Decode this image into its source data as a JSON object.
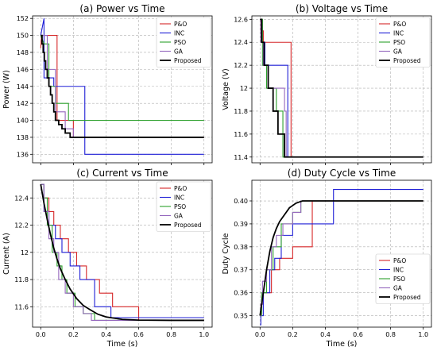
{
  "chart_data": [
    {
      "type": "line",
      "title": "(a) Power vs Time",
      "xlabel": "",
      "ylabel": "Power (W)",
      "xlim": [
        -0.05,
        1.05
      ],
      "ylim": [
        135,
        152.3
      ],
      "xticks": [],
      "yticks": [
        136,
        138,
        140,
        142,
        144,
        146,
        148,
        150,
        152
      ],
      "grid": true,
      "legend_position": "top-right",
      "series": [
        {
          "name": "P&O",
          "color": "#d62728",
          "x": [
            0,
            0.005,
            0.1,
            0.1,
            0.2,
            0.2,
            1
          ],
          "y": [
            148.5,
            150,
            150,
            140,
            140,
            138,
            138
          ]
        },
        {
          "name": "INC",
          "color": "#1f1fd6",
          "x": [
            0,
            0.02,
            0.02,
            0.08,
            0.08,
            0.27,
            0.27,
            1
          ],
          "y": [
            150,
            152,
            145,
            145,
            144,
            144,
            136,
            136
          ]
        },
        {
          "name": "PSO",
          "color": "#2ca02c",
          "x": [
            0,
            0.02,
            0.05,
            0.05,
            0.09,
            0.09,
            0.17,
            0.17,
            1
          ],
          "y": [
            150,
            149,
            149,
            144,
            144,
            142,
            142,
            140,
            140
          ]
        },
        {
          "name": "GA",
          "color": "#9467bd",
          "x": [
            0,
            0.01,
            0.04,
            0.04,
            0.09,
            0.09,
            0.15,
            0.15,
            0.2,
            0.2,
            1
          ],
          "y": [
            150,
            150,
            150,
            146,
            146,
            141,
            141,
            139,
            139,
            138,
            138
          ]
        },
        {
          "name": "Proposed",
          "color": "#000000",
          "x": [
            0,
            0.008,
            0.008,
            0.015,
            0.015,
            0.022,
            0.022,
            0.03,
            0.03,
            0.04,
            0.04,
            0.05,
            0.05,
            0.06,
            0.06,
            0.07,
            0.07,
            0.08,
            0.08,
            0.09,
            0.09,
            0.11,
            0.11,
            0.13,
            0.13,
            0.15,
            0.15,
            0.18,
            0.18,
            1
          ],
          "y": [
            150,
            150,
            149,
            149,
            148,
            148,
            147,
            147,
            146,
            146,
            145,
            145,
            144,
            144,
            143,
            143,
            142,
            142,
            141,
            141,
            140,
            140,
            139.5,
            139.5,
            139,
            139,
            138.5,
            138.5,
            138,
            138
          ]
        }
      ]
    },
    {
      "type": "line",
      "title": "(b) Voltage vs Time",
      "xlabel": "",
      "ylabel": "Voltage (V)",
      "xlim": [
        -0.05,
        1.05
      ],
      "ylim": [
        11.35,
        12.63
      ],
      "xticks": [],
      "yticks": [
        11.4,
        11.6,
        11.8,
        12.0,
        12.2,
        12.4,
        12.6
      ],
      "grid": true,
      "legend_position": "top-right",
      "series": [
        {
          "name": "P&O",
          "color": "#d62728",
          "x": [
            0,
            0.005,
            0.005,
            0.02,
            0.02,
            0.19,
            0.19,
            1
          ],
          "y": [
            12.6,
            12.6,
            12.5,
            12.5,
            12.4,
            12.4,
            11.4,
            11.4
          ]
        },
        {
          "name": "INC",
          "color": "#1f1fd6",
          "x": [
            0,
            0.01,
            0.01,
            0.03,
            0.03,
            0.17,
            0.17,
            1
          ],
          "y": [
            12.6,
            12.6,
            12.4,
            12.4,
            12.2,
            12.2,
            11.4,
            11.4
          ]
        },
        {
          "name": "PSO",
          "color": "#2ca02c",
          "x": [
            0,
            0.015,
            0.015,
            0.04,
            0.04,
            0.1,
            0.1,
            0.14,
            0.14,
            1
          ],
          "y": [
            12.6,
            12.6,
            12.2,
            12.2,
            12.0,
            12.0,
            11.8,
            11.8,
            11.4,
            11.4
          ]
        },
        {
          "name": "GA",
          "color": "#9467bd",
          "x": [
            0,
            0.005,
            0.005,
            0.02,
            0.02,
            0.05,
            0.05,
            0.15,
            0.15,
            0.16,
            0.16,
            1
          ],
          "y": [
            12.6,
            12.6,
            12.4,
            12.4,
            12.2,
            12.2,
            12.0,
            12.0,
            11.8,
            11.8,
            11.4,
            11.4
          ]
        },
        {
          "name": "Proposed",
          "color": "#000000",
          "x": [
            0,
            0.01,
            0.01,
            0.025,
            0.025,
            0.05,
            0.05,
            0.08,
            0.08,
            0.11,
            0.11,
            0.15,
            0.15,
            1
          ],
          "y": [
            12.6,
            12.6,
            12.4,
            12.4,
            12.2,
            12.2,
            12.0,
            12.0,
            11.8,
            11.8,
            11.6,
            11.6,
            11.4,
            11.4
          ]
        }
      ]
    },
    {
      "type": "line",
      "title": "(c) Current vs Time",
      "xlabel": "Time (s)",
      "ylabel": "Current (A)",
      "xlim": [
        -0.05,
        1.05
      ],
      "ylim": [
        11.45,
        12.53
      ],
      "xticks": [
        "0.0",
        "0.2",
        "0.4",
        "0.6",
        "0.8",
        "1.0"
      ],
      "yticks": [
        11.6,
        11.8,
        12.0,
        12.2,
        12.4
      ],
      "grid": true,
      "legend_position": "top-right",
      "series": [
        {
          "name": "P&O",
          "color": "#d62728",
          "x": [
            0,
            0.02,
            0.02,
            0.05,
            0.05,
            0.08,
            0.08,
            0.12,
            0.12,
            0.17,
            0.17,
            0.22,
            0.22,
            0.28,
            0.28,
            0.36,
            0.36,
            0.44,
            0.44,
            0.6,
            0.6,
            1
          ],
          "y": [
            12.5,
            12.5,
            12.4,
            12.4,
            12.3,
            12.3,
            12.2,
            12.2,
            12.1,
            12.1,
            12.0,
            12.0,
            11.9,
            11.9,
            11.8,
            11.8,
            11.7,
            11.7,
            11.6,
            11.6,
            11.5,
            11.5
          ]
        },
        {
          "name": "INC",
          "color": "#1f1fd6",
          "x": [
            0,
            0.02,
            0.02,
            0.05,
            0.05,
            0.09,
            0.09,
            0.13,
            0.13,
            0.18,
            0.18,
            0.24,
            0.24,
            0.33,
            0.33,
            0.43,
            0.43,
            1
          ],
          "y": [
            12.5,
            12.5,
            12.3,
            12.3,
            12.2,
            12.2,
            12.1,
            12.1,
            12.0,
            12.0,
            11.9,
            11.9,
            11.8,
            11.8,
            11.6,
            11.6,
            11.52,
            11.52
          ]
        },
        {
          "name": "PSO",
          "color": "#2ca02c",
          "x": [
            0,
            0.02,
            0.02,
            0.04,
            0.04,
            0.07,
            0.07,
            0.1,
            0.1,
            0.13,
            0.13,
            0.16,
            0.16,
            0.21,
            0.21,
            0.26,
            0.26,
            0.33,
            0.33,
            1
          ],
          "y": [
            12.5,
            12.5,
            12.4,
            12.4,
            12.2,
            12.2,
            12.0,
            12.0,
            11.9,
            11.9,
            11.8,
            11.8,
            11.7,
            11.7,
            11.6,
            11.6,
            11.55,
            11.55,
            11.5,
            11.5
          ]
        },
        {
          "name": "GA",
          "color": "#9467bd",
          "x": [
            0,
            0.02,
            0.02,
            0.05,
            0.05,
            0.08,
            0.08,
            0.11,
            0.11,
            0.15,
            0.15,
            0.2,
            0.2,
            0.26,
            0.26,
            0.31,
            0.31,
            1
          ],
          "y": [
            12.5,
            12.5,
            12.3,
            12.3,
            12.1,
            12.1,
            12.0,
            12.0,
            11.8,
            11.8,
            11.7,
            11.7,
            11.6,
            11.6,
            11.55,
            11.55,
            11.5,
            11.5
          ]
        },
        {
          "name": "Proposed",
          "color": "#000000",
          "x": [
            0,
            0.02,
            0.04,
            0.06,
            0.08,
            0.1,
            0.12,
            0.15,
            0.18,
            0.22,
            0.26,
            0.3,
            0.35,
            0.4,
            0.5,
            0.6,
            0.8,
            1.0
          ],
          "y": [
            12.5,
            12.36,
            12.24,
            12.13,
            12.03,
            11.95,
            11.88,
            11.8,
            11.73,
            11.66,
            11.61,
            11.58,
            11.545,
            11.525,
            11.507,
            11.502,
            11.5,
            11.5
          ]
        }
      ]
    },
    {
      "type": "line",
      "title": "(d) Duty Cycle vs Time",
      "xlabel": "Time (s)",
      "ylabel": "Duty Cycle",
      "xlim": [
        -0.05,
        1.05
      ],
      "ylim": [
        0.345,
        0.409
      ],
      "xticks": [
        "0.0",
        "0.2",
        "0.4",
        "0.6",
        "0.8",
        "1.0"
      ],
      "yticks": [
        "0.35",
        "0.36",
        "0.37",
        "0.38",
        "0.39",
        "0.40"
      ],
      "grid": true,
      "legend_position": "bottom-right",
      "series": [
        {
          "name": "P&O",
          "color": "#d62728",
          "x": [
            0,
            0.005,
            0.005,
            0.02,
            0.02,
            0.07,
            0.07,
            0.12,
            0.12,
            0.2,
            0.2,
            0.32,
            0.32,
            1
          ],
          "y": [
            0.35,
            0.35,
            0.355,
            0.355,
            0.36,
            0.36,
            0.37,
            0.37,
            0.375,
            0.375,
            0.38,
            0.38,
            0.4,
            0.4
          ]
        },
        {
          "name": "INC",
          "color": "#1f1fd6",
          "x": [
            0,
            0.005,
            0.005,
            0.02,
            0.02,
            0.06,
            0.06,
            0.09,
            0.09,
            0.13,
            0.13,
            0.2,
            0.2,
            0.45,
            0.45,
            1
          ],
          "y": [
            0.346,
            0.346,
            0.35,
            0.35,
            0.36,
            0.36,
            0.37,
            0.37,
            0.375,
            0.375,
            0.385,
            0.385,
            0.39,
            0.39,
            0.405,
            0.405
          ]
        },
        {
          "name": "PSO",
          "color": "#2ca02c",
          "x": [
            0,
            0.01,
            0.01,
            0.04,
            0.04,
            0.08,
            0.08,
            0.13,
            0.13,
            0.2,
            0.2,
            0.25,
            0.25,
            1
          ],
          "y": [
            0.35,
            0.35,
            0.36,
            0.36,
            0.37,
            0.37,
            0.38,
            0.38,
            0.39,
            0.39,
            0.395,
            0.395,
            0.4,
            0.4
          ]
        },
        {
          "name": "GA",
          "color": "#9467bd",
          "x": [
            0,
            0.005,
            0.005,
            0.015,
            0.015,
            0.04,
            0.04,
            0.07,
            0.07,
            0.1,
            0.1,
            0.14,
            0.14,
            0.2,
            0.2,
            0.25,
            0.25,
            1
          ],
          "y": [
            0.35,
            0.35,
            0.355,
            0.355,
            0.365,
            0.365,
            0.37,
            0.37,
            0.38,
            0.38,
            0.385,
            0.385,
            0.39,
            0.39,
            0.395,
            0.395,
            0.4,
            0.4
          ]
        },
        {
          "name": "Proposed",
          "color": "#000000",
          "x": [
            0,
            0.01,
            0.02,
            0.03,
            0.04,
            0.05,
            0.06,
            0.07,
            0.08,
            0.09,
            0.1,
            0.12,
            0.14,
            0.16,
            0.18,
            0.2,
            0.22,
            0.24,
            0.26,
            1
          ],
          "y": [
            0.35,
            0.355,
            0.36,
            0.365,
            0.37,
            0.374,
            0.378,
            0.381,
            0.384,
            0.386,
            0.388,
            0.391,
            0.393,
            0.395,
            0.397,
            0.398,
            0.399,
            0.3995,
            0.4,
            0.4
          ]
        }
      ]
    }
  ]
}
